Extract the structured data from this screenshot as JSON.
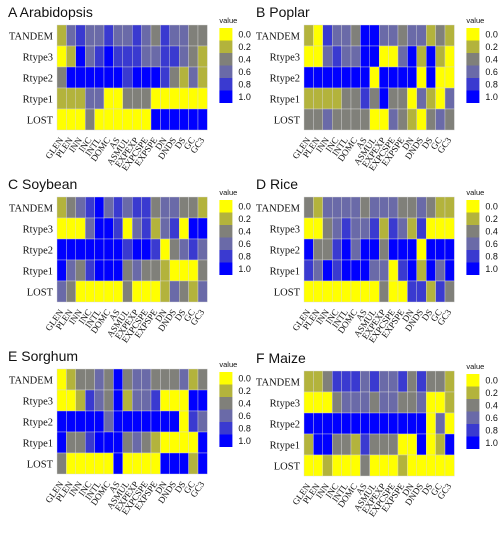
{
  "chart_data": [
    {
      "type": "heatmap",
      "title": "A Arabidopsis",
      "rows": [
        "TANDEM",
        "Rtype3",
        "Rtype2",
        "Rtype1",
        "LOST"
      ],
      "columns": [
        "GLEN",
        "PLEN",
        "INN",
        "INC",
        "INTL",
        "DOMC",
        "AS",
        "ASMUL",
        "EXPEXP",
        "EXPCSPE",
        "EXPSPE",
        "DN",
        "DNDS",
        "DS",
        "GC",
        "GC3"
      ],
      "values": [
        [
          0.2,
          0.6,
          0.8,
          0.6,
          0.6,
          0.8,
          0.6,
          0.6,
          0.8,
          0.6,
          0.4,
          0.8,
          0.6,
          0.6,
          0.4,
          0.4
        ],
        [
          0.0,
          0.2,
          1.0,
          0.6,
          0.8,
          1.0,
          0.8,
          0.8,
          0.8,
          0.6,
          0.6,
          0.8,
          0.8,
          0.6,
          0.4,
          0.2
        ],
        [
          0.4,
          1.0,
          1.0,
          1.0,
          1.0,
          1.0,
          1.0,
          0.8,
          1.0,
          1.0,
          1.0,
          0.8,
          0.4,
          0.2,
          0.6,
          0.2
        ],
        [
          0.2,
          0.2,
          0.2,
          0.6,
          0.6,
          0.0,
          0.0,
          0.4,
          0.4,
          0.4,
          0.0,
          0.0,
          0.0,
          0.0,
          0.0,
          0.0
        ],
        [
          0.0,
          0.0,
          0.0,
          0.4,
          0.0,
          0.0,
          0.0,
          0.0,
          0.0,
          0.0,
          1.0,
          1.0,
          1.0,
          1.0,
          1.0,
          1.0
        ]
      ]
    },
    {
      "type": "heatmap",
      "title": "B Poplar",
      "rows": [
        "TANDEM",
        "Rtype3",
        "Rtype2",
        "Rtype1",
        "LOST"
      ],
      "columns": [
        "GLEN",
        "PLEN",
        "INN",
        "INC",
        "INTL",
        "DOMC",
        "AS",
        "ASMUL",
        "EXPEXP",
        "EXPCSPE",
        "EXPSPE",
        "DN",
        "DNDS",
        "DS",
        "GC",
        "GC3"
      ],
      "values": [
        [
          0.2,
          0.0,
          0.8,
          0.6,
          0.6,
          0.4,
          1.0,
          1.0,
          0.6,
          0.6,
          0.4,
          0.6,
          0.6,
          0.2,
          0.4,
          0.2
        ],
        [
          0.0,
          0.0,
          0.6,
          0.8,
          0.6,
          0.6,
          1.0,
          1.0,
          0.0,
          0.0,
          0.6,
          1.0,
          0.2,
          1.0,
          0.2,
          0.0
        ],
        [
          1.0,
          1.0,
          1.0,
          1.0,
          1.0,
          1.0,
          1.0,
          0.0,
          1.0,
          1.0,
          1.0,
          1.0,
          0.0,
          1.0,
          0.0,
          0.0
        ],
        [
          0.2,
          0.2,
          0.2,
          0.2,
          0.4,
          0.4,
          0.8,
          0.4,
          1.0,
          0.4,
          0.4,
          0.0,
          0.6,
          0.2,
          0.0,
          0.6
        ],
        [
          0.4,
          0.4,
          0.6,
          0.4,
          0.4,
          0.4,
          0.4,
          0.0,
          0.0,
          0.6,
          0.4,
          0.2,
          0.0,
          0.4,
          0.6,
          0.4
        ]
      ]
    },
    {
      "type": "heatmap",
      "title": "C Soybean",
      "rows": [
        "TANDEM",
        "Rtype3",
        "Rtype2",
        "Rtype1",
        "LOST"
      ],
      "columns": [
        "GLEN",
        "PLEN",
        "INN",
        "INC",
        "INTL",
        "DOMC",
        "AS",
        "ASMUL",
        "EXPEXP",
        "EXPCSPE",
        "EXPSPE",
        "DN",
        "DNDS",
        "DS",
        "GC",
        "GC3"
      ],
      "values": [
        [
          0.2,
          0.4,
          0.6,
          0.8,
          1.0,
          0.6,
          0.8,
          0.6,
          0.8,
          0.8,
          0.4,
          0.6,
          0.6,
          0.4,
          0.4,
          0.2
        ],
        [
          0.0,
          0.0,
          0.0,
          0.6,
          1.0,
          1.0,
          0.8,
          0.0,
          0.6,
          0.8,
          0.2,
          0.6,
          0.8,
          0.0,
          1.0,
          1.0
        ],
        [
          1.0,
          1.0,
          1.0,
          1.0,
          1.0,
          1.0,
          1.0,
          0.8,
          1.0,
          1.0,
          0.8,
          0.0,
          0.4,
          0.6,
          0.8,
          0.6
        ],
        [
          1.0,
          0.6,
          0.4,
          0.8,
          1.0,
          1.0,
          1.0,
          0.4,
          0.6,
          0.4,
          0.4,
          0.2,
          0.0,
          0.0,
          0.0,
          0.4
        ],
        [
          0.6,
          0.4,
          0.0,
          0.0,
          0.0,
          0.0,
          0.0,
          0.4,
          0.0,
          0.0,
          0.0,
          0.2,
          0.6,
          0.4,
          0.2,
          0.6
        ]
      ]
    },
    {
      "type": "heatmap",
      "title": "D Rice",
      "rows": [
        "TANDEM",
        "Rtype3",
        "Rtype2",
        "Rtype1",
        "LOST"
      ],
      "columns": [
        "GLEN",
        "PLEN",
        "INN",
        "INC",
        "INTL",
        "DOMC",
        "AS",
        "ASMUL",
        "EXPEXP",
        "EXPCSPE",
        "EXPSPE",
        "DN",
        "DNDS",
        "DS",
        "GC",
        "GC3"
      ],
      "values": [
        [
          0.4,
          0.2,
          0.6,
          0.6,
          0.6,
          0.6,
          0.4,
          0.6,
          0.6,
          0.6,
          0.4,
          0.4,
          0.6,
          0.4,
          0.2,
          0.2
        ],
        [
          0.0,
          0.0,
          0.4,
          0.6,
          0.8,
          0.6,
          0.6,
          0.8,
          0.2,
          0.8,
          0.6,
          0.2,
          0.8,
          0.0,
          0.0,
          0.0
        ],
        [
          1.0,
          0.4,
          0.4,
          0.8,
          1.0,
          0.6,
          1.0,
          1.0,
          0.4,
          1.0,
          1.0,
          1.0,
          0.0,
          1.0,
          1.0,
          1.0
        ],
        [
          0.8,
          0.6,
          1.0,
          0.8,
          1.0,
          1.0,
          1.0,
          0.6,
          0.6,
          0.0,
          0.8,
          1.0,
          0.2,
          1.0,
          0.6,
          1.0
        ],
        [
          0.0,
          0.0,
          0.0,
          0.0,
          0.0,
          0.0,
          0.0,
          0.0,
          0.4,
          0.0,
          0.0,
          0.8,
          0.8,
          0.2,
          0.8,
          0.4
        ]
      ]
    },
    {
      "type": "heatmap",
      "title": "E Sorghum",
      "rows": [
        "TANDEM",
        "Rtype3",
        "Rtype2",
        "Rtype1",
        "LOST"
      ],
      "columns": [
        "GLEN",
        "PLEN",
        "INN",
        "INC",
        "INTL",
        "DOMC",
        "AS",
        "ASMUL",
        "EXPEXP",
        "EXPCSPE",
        "EXPSPE",
        "DN",
        "DNDS",
        "DS",
        "GC",
        "GC3"
      ],
      "values": [
        [
          0.0,
          0.2,
          0.4,
          0.4,
          0.6,
          0.4,
          1.0,
          0.4,
          0.6,
          0.6,
          0.4,
          0.4,
          0.4,
          0.6,
          0.2,
          0.4
        ],
        [
          0.0,
          0.0,
          0.2,
          0.8,
          0.6,
          0.4,
          1.0,
          0.2,
          0.6,
          0.6,
          0.8,
          0.0,
          0.0,
          0.0,
          1.0,
          1.0
        ],
        [
          1.0,
          1.0,
          1.0,
          1.0,
          1.0,
          0.6,
          1.0,
          1.0,
          1.0,
          1.0,
          1.0,
          1.0,
          1.0,
          0.0,
          0.8,
          0.6
        ],
        [
          1.0,
          0.4,
          0.4,
          0.8,
          1.0,
          1.0,
          1.0,
          0.4,
          0.6,
          0.4,
          0.2,
          0.0,
          0.0,
          0.0,
          0.0,
          1.0
        ],
        [
          0.4,
          0.0,
          0.0,
          0.0,
          0.0,
          0.0,
          1.0,
          0.0,
          0.0,
          0.0,
          0.0,
          1.0,
          1.0,
          1.0,
          0.2,
          1.0
        ]
      ]
    },
    {
      "type": "heatmap",
      "title": "F Maize",
      "rows": [
        "TANDEM",
        "Rtype3",
        "Rtype2",
        "Rtype1",
        "LOST"
      ],
      "columns": [
        "GLEN",
        "PLEN",
        "INN",
        "INC",
        "INTL",
        "DOMC",
        "AS",
        "ASMUL",
        "EXPEXP",
        "EXPCSPE",
        "EXPSPE",
        "DN",
        "DNDS",
        "DS",
        "GC",
        "GC3"
      ],
      "values": [
        [
          0.2,
          0.2,
          0.4,
          0.8,
          0.8,
          0.8,
          0.6,
          0.8,
          0.6,
          0.6,
          0.8,
          0.4,
          0.8,
          0.4,
          0.4,
          0.2
        ],
        [
          0.0,
          0.0,
          0.0,
          0.4,
          0.6,
          0.6,
          0.6,
          0.4,
          0.6,
          0.6,
          0.4,
          0.4,
          0.6,
          0.0,
          0.0,
          0.2
        ],
        [
          1.0,
          1.0,
          1.0,
          1.0,
          1.0,
          1.0,
          1.0,
          1.0,
          1.0,
          1.0,
          1.0,
          1.0,
          1.0,
          0.0,
          0.6,
          0.0
        ],
        [
          0.2,
          1.0,
          1.0,
          0.4,
          0.4,
          0.2,
          0.8,
          0.4,
          0.4,
          0.4,
          0.0,
          0.0,
          1.0,
          0.0,
          0.2,
          1.0
        ],
        [
          0.0,
          0.0,
          0.2,
          0.0,
          0.0,
          0.0,
          0.4,
          0.0,
          0.0,
          0.0,
          0.2,
          0.0,
          0.0,
          0.0,
          0.0,
          0.0
        ]
      ]
    }
  ],
  "legend": {
    "title": "value",
    "ticks": [
      "0.0",
      "0.2",
      "0.4",
      "0.6",
      "0.8",
      "1.0"
    ],
    "colors": [
      "#ffff00",
      "#b3b33c",
      "#80807a",
      "#6a6aa8",
      "#3a3ad0",
      "#0000ff"
    ]
  }
}
